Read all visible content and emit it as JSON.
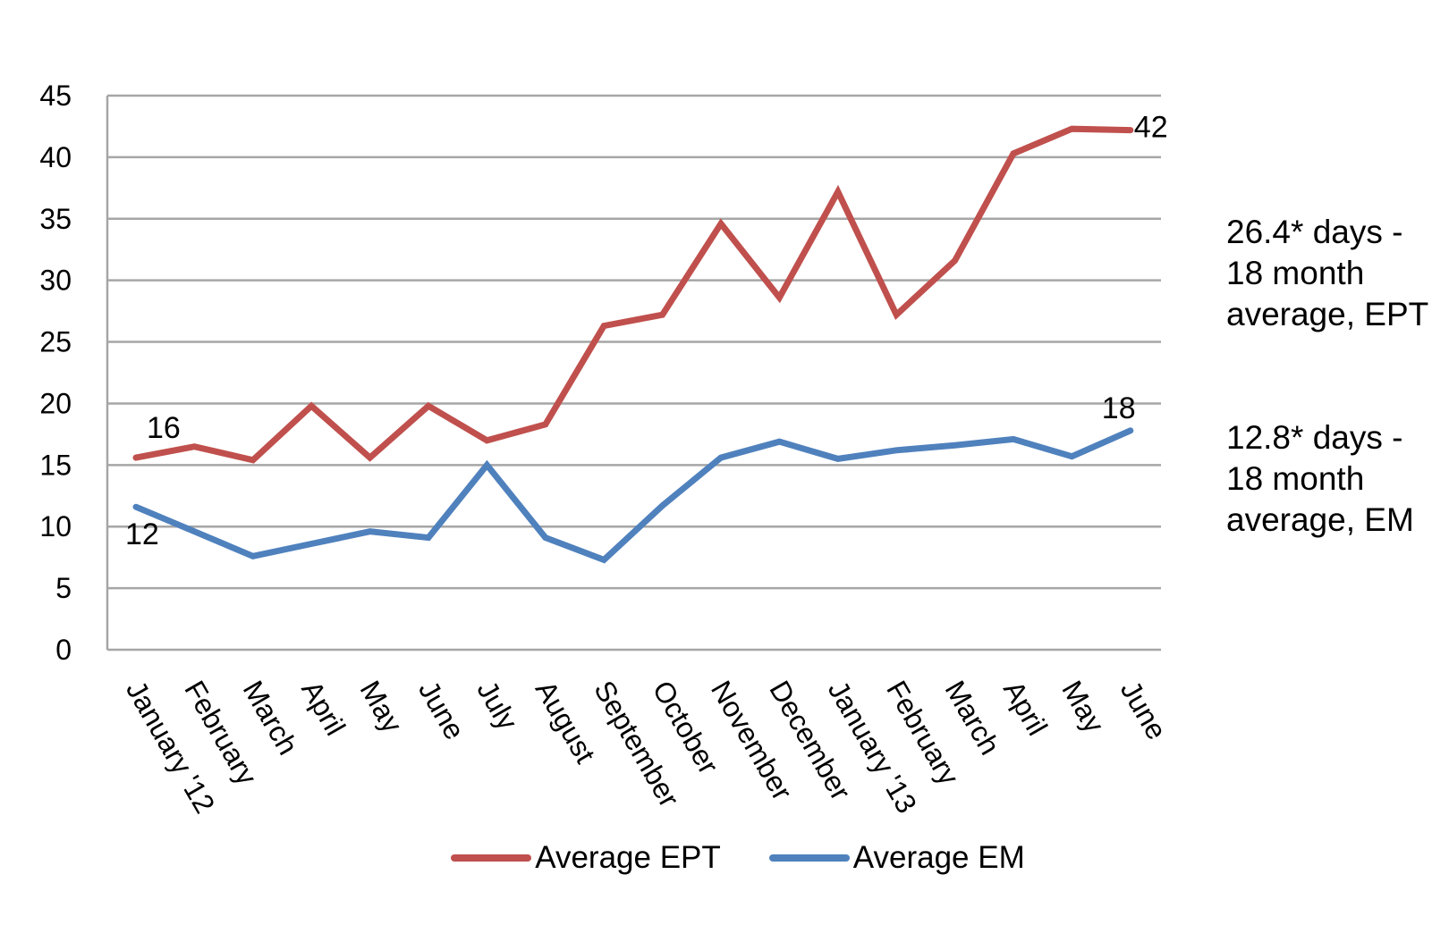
{
  "chart_data": {
    "type": "line",
    "x": [
      "January '12",
      "February",
      "March",
      "April",
      "May",
      "June",
      "July",
      "August",
      "September",
      "October",
      "November",
      "December",
      "January '13",
      "February",
      "March",
      "April",
      "May",
      "June"
    ],
    "series": [
      {
        "name": "Average EPT",
        "color": "#c0504d",
        "values": [
          15.6,
          16.5,
          15.4,
          19.8,
          15.6,
          19.8,
          17.0,
          18.3,
          26.3,
          27.2,
          34.6,
          28.6,
          37.2,
          27.2,
          31.6,
          40.3,
          42.3,
          42.2
        ]
      },
      {
        "name": "Average EM",
        "color": "#4f81bd",
        "values": [
          11.6,
          9.6,
          7.6,
          8.6,
          9.6,
          9.1,
          15.0,
          9.1,
          7.3,
          11.7,
          15.6,
          16.9,
          15.5,
          16.2,
          16.6,
          17.1,
          15.7,
          17.8
        ]
      }
    ],
    "yticks": [
      "0",
      "5",
      "10",
      "15",
      "20",
      "25",
      "30",
      "35",
      "40",
      "45"
    ],
    "ylim": [
      0,
      45
    ],
    "grid": true,
    "legend": "bottom",
    "data_labels": [
      {
        "series": 0,
        "index": 0,
        "text": "16"
      },
      {
        "series": 0,
        "index": 17,
        "text": "42"
      },
      {
        "series": 1,
        "index": 0,
        "text": "12"
      },
      {
        "series": 1,
        "index": 17,
        "text": "18"
      }
    ],
    "annotations": [
      "26.4* days - 18 month average, EPT",
      "12.8* days - 18 month average, EM"
    ]
  }
}
